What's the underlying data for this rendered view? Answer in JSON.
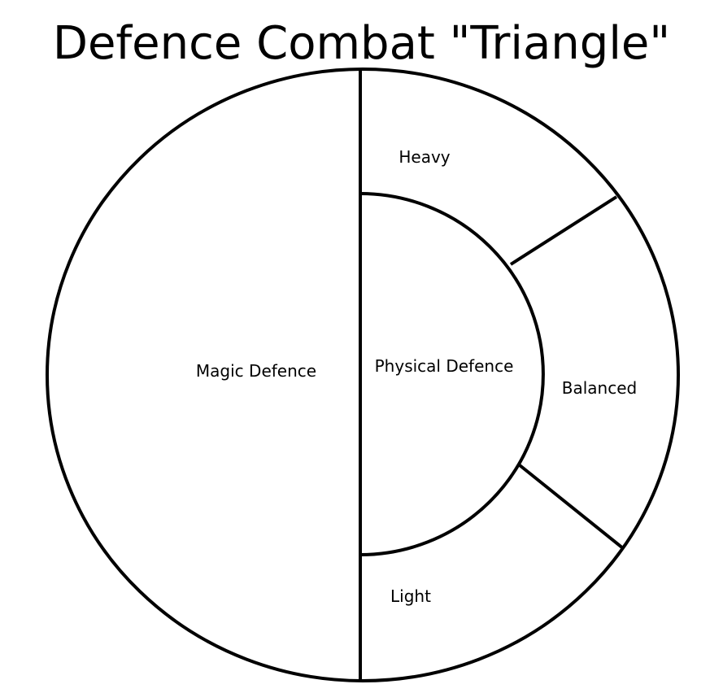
{
  "title": "Defence Combat \"Triangle\"",
  "regions": {
    "magic": "Magic Defence",
    "physical": "Physical Defence",
    "heavy": "Heavy",
    "balanced": "Balanced",
    "light": "Light"
  },
  "colors": {
    "stroke": "#000000",
    "background": "#ffffff"
  }
}
